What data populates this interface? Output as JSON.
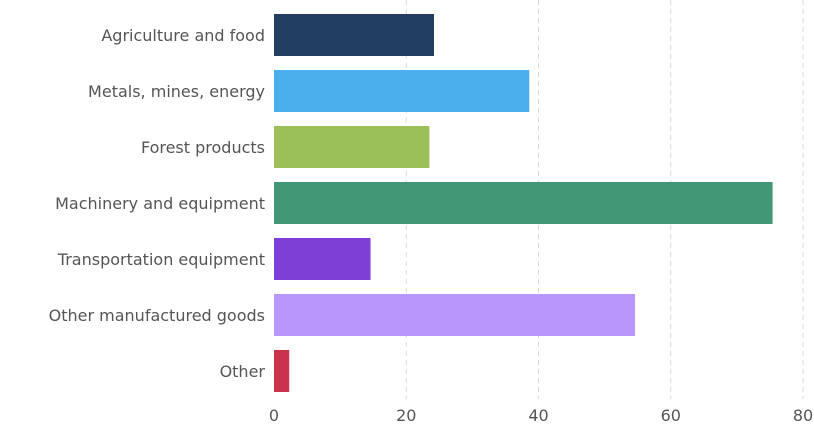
{
  "chart_data": {
    "type": "bar",
    "orientation": "horizontal",
    "title": "",
    "xlabel": "",
    "ylabel": "",
    "categories": [
      "Agriculture and food",
      "Metals, mines, energy",
      "Forest products",
      "Machinery and equipment",
      "Transportation equipment",
      "Other manufactured goods",
      "Other"
    ],
    "values": [
      24.2,
      38.6,
      23.5,
      75.4,
      14.6,
      54.6,
      2.3
    ],
    "colors": [
      "#223e61",
      "#4bafed",
      "#9cc059",
      "#429876",
      "#7e3fd6",
      "#b896fb",
      "#c8344c"
    ],
    "xlim": [
      0,
      80
    ],
    "xticks": [
      "0",
      "20",
      "40",
      "60",
      "80"
    ],
    "grid": true,
    "legend": "none"
  }
}
